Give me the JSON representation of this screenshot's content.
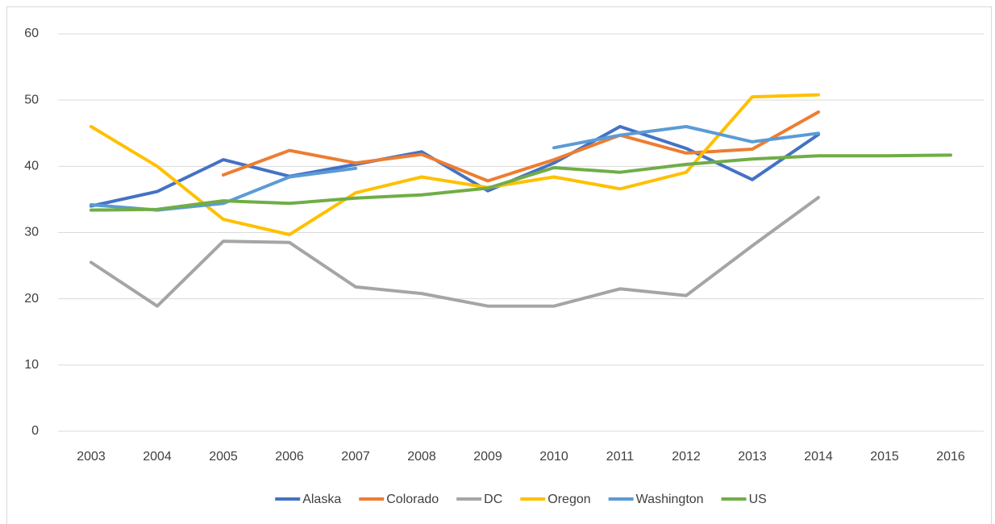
{
  "chart_data": {
    "type": "line",
    "categories": [
      "2003",
      "2004",
      "2005",
      "2006",
      "2007",
      "2008",
      "2009",
      "2010",
      "2011",
      "2012",
      "2013",
      "2014",
      "2015",
      "2016"
    ],
    "series": [
      {
        "name": "Alaska",
        "color": "#4472c4",
        "values": [
          34,
          36.2,
          41,
          38.5,
          40.3,
          42.2,
          36.3,
          40.5,
          46,
          42.7,
          38,
          44.8,
          null,
          null
        ]
      },
      {
        "name": "Colorado",
        "color": "#ed7d31",
        "values": [
          null,
          null,
          38.7,
          42.4,
          40.5,
          41.8,
          37.8,
          41,
          44.7,
          42,
          42.6,
          48.2,
          null,
          null
        ]
      },
      {
        "name": "DC",
        "color": "#a5a5a5",
        "values": [
          25.5,
          18.9,
          28.7,
          28.5,
          21.8,
          20.8,
          18.9,
          18.9,
          21.5,
          20.5,
          28,
          35.3,
          null,
          null
        ]
      },
      {
        "name": "Oregon",
        "color": "#ffc000",
        "values": [
          46,
          40,
          32,
          29.7,
          36,
          38.4,
          36.8,
          38.4,
          36.6,
          39.1,
          50.5,
          50.8,
          null,
          null
        ]
      },
      {
        "name": "Washington",
        "color": "#5b9bd5",
        "values": [
          34.2,
          33.4,
          34.4,
          38.4,
          39.7,
          null,
          null,
          42.8,
          44.7,
          46,
          43.7,
          45,
          null,
          null
        ]
      },
      {
        "name": "US",
        "color": "#70ad47",
        "values": [
          33.4,
          33.5,
          34.8,
          34.4,
          35.2,
          35.7,
          36.7,
          39.8,
          39.1,
          40.3,
          41.1,
          41.6,
          41.6,
          41.7
        ]
      }
    ],
    "ylim": [
      0,
      60
    ],
    "yticks": [
      0,
      10,
      20,
      30,
      40,
      50,
      60
    ],
    "grid": true,
    "legend": "bottom"
  }
}
